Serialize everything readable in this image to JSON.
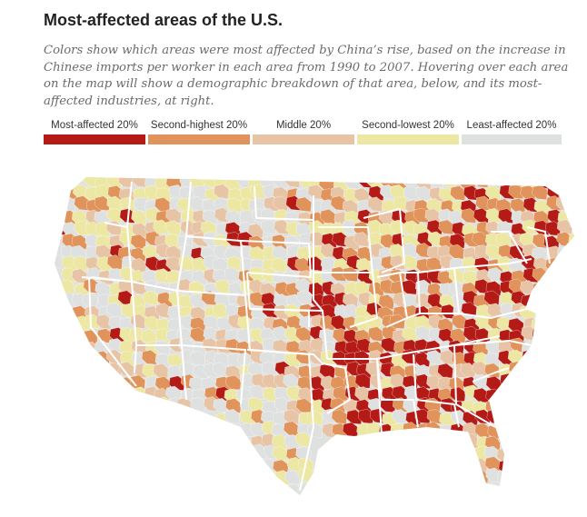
{
  "title": "Most-affected areas of the U.S.",
  "subtitle": "Colors show which areas were most affected by China’s rise, based on the increase in Chinese imports per worker in each area from 1990 to 2007. Hovering over each area on the map will show a demographic breakdown of that area, below, and its most-affected industries, at right.",
  "legend": [
    {
      "label": "Most-affected 20%",
      "color": "#b41b17"
    },
    {
      "label": "Second-highest 20%",
      "color": "#e0935a"
    },
    {
      "label": "Middle 20%",
      "color": "#e8c4a6"
    },
    {
      "label": "Second-lowest 20%",
      "color": "#ece7a3"
    },
    {
      "label": "Least-affected 20%",
      "color": "#dfe1e0"
    }
  ],
  "map": {
    "region": "Contiguous United States",
    "unit": "commuting zone",
    "boundaries": "state borders in white",
    "notable_clusters": {
      "most_affected": [
        "Tennessee",
        "Mississippi",
        "Alabama",
        "Arkansas",
        "Missouri",
        "Georgia",
        "North Carolina",
        "Indiana",
        "Ohio",
        "Utah",
        "Vermont",
        "New Hampshire",
        "Maine",
        "Northern California",
        "Florida"
      ],
      "least_affected": [
        "Nevada",
        "Wyoming",
        "Montana",
        "North Dakota",
        "Oklahoma",
        "Western Texas",
        "Arizona"
      ]
    }
  }
}
